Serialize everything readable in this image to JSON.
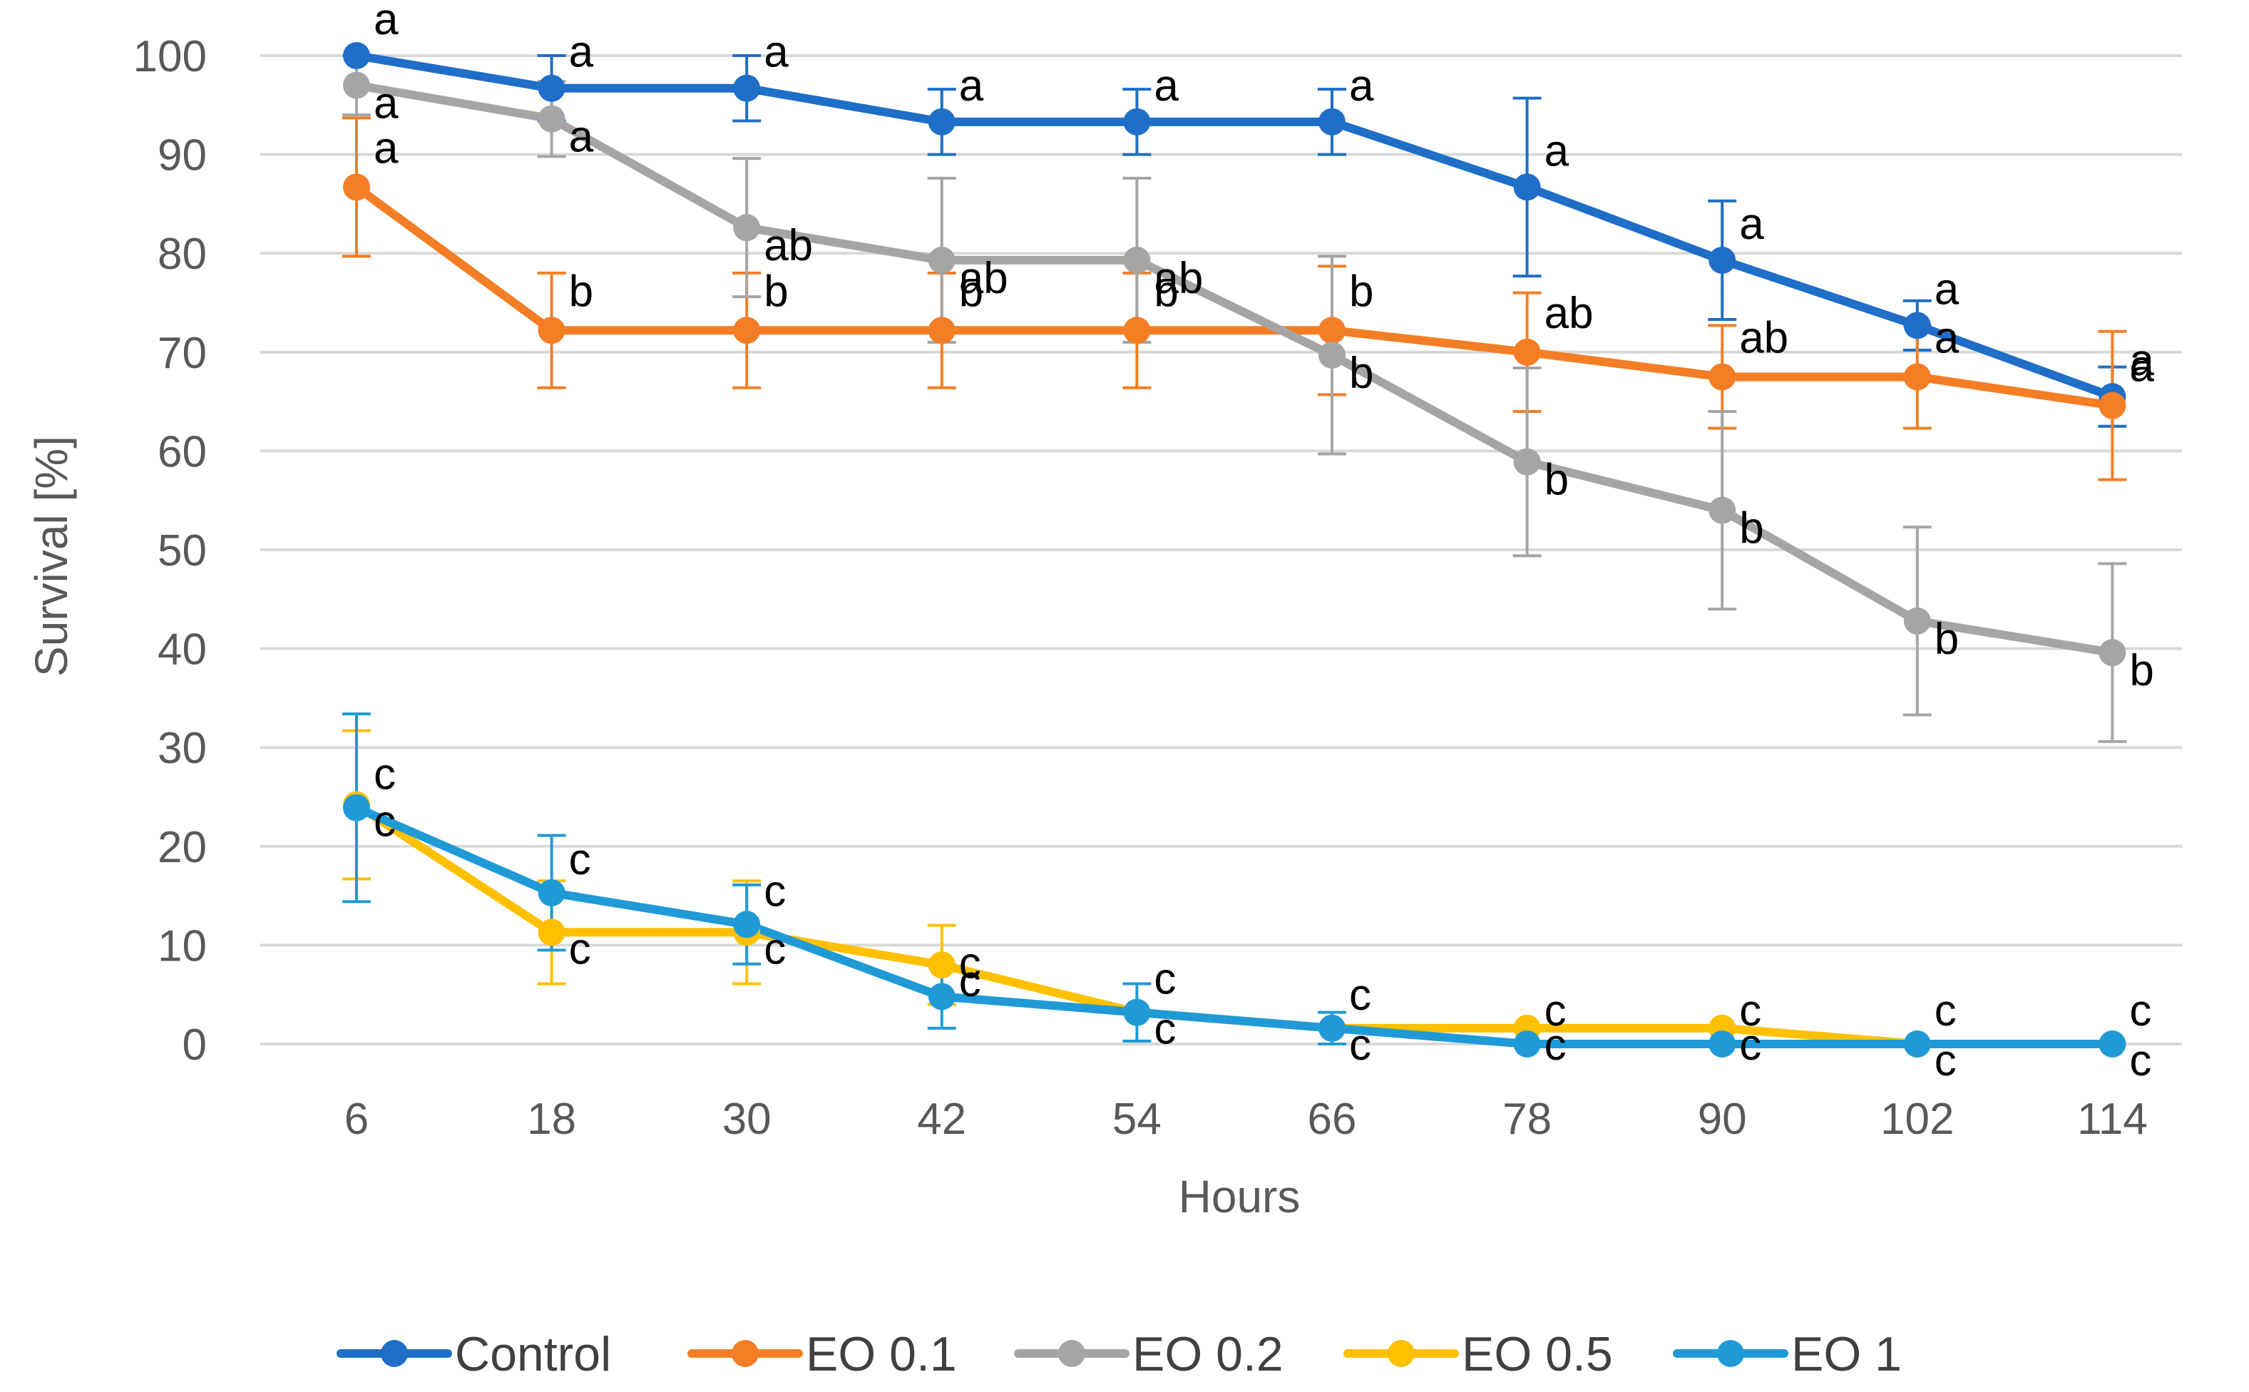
{
  "chart_data": {
    "type": "line",
    "title": "",
    "xlabel": "Hours",
    "ylabel": "Survival [%]",
    "ylim": [
      0,
      100
    ],
    "yticks": [
      "0",
      "10",
      "20",
      "30",
      "40",
      "50",
      "60",
      "70",
      "80",
      "90",
      "100"
    ],
    "categories": [
      "6",
      "18",
      "30",
      "42",
      "54",
      "66",
      "78",
      "90",
      "102",
      "114"
    ],
    "grid": "horizontal",
    "legend_position": "bottom",
    "series": [
      {
        "name": "Control",
        "color": "#1f6ec7",
        "values": [
          100,
          96.7,
          96.7,
          93.3,
          93.3,
          93.3,
          86.7,
          79.3,
          72.7,
          65.5
        ],
        "error": [
          0,
          3.3,
          3.3,
          3.3,
          3.3,
          3.3,
          9.0,
          6.0,
          2.5,
          3.0
        ],
        "letters": [
          "a",
          "a",
          "a",
          "a",
          "a",
          "a",
          "a",
          "a",
          "a",
          "a"
        ]
      },
      {
        "name": "EO 0.1",
        "color": "#f37e25",
        "values": [
          86.7,
          72.2,
          72.2,
          72.2,
          72.2,
          72.2,
          70.0,
          67.5,
          67.5,
          64.6
        ],
        "error": [
          7.0,
          5.8,
          5.8,
          5.8,
          5.8,
          6.5,
          6.0,
          5.2,
          5.2,
          7.5
        ],
        "letters": [
          "a",
          "b",
          "b",
          "b",
          "b",
          "b",
          "ab",
          "ab",
          "a",
          "a"
        ]
      },
      {
        "name": "EO 0.2",
        "color": "#a5a5a5",
        "values": [
          97.0,
          93.6,
          82.6,
          79.3,
          79.3,
          69.7,
          58.9,
          54.0,
          42.8,
          39.6
        ],
        "error": [
          3.0,
          3.8,
          7.0,
          8.3,
          8.3,
          10.0,
          9.5,
          10.0,
          9.5,
          9.0
        ],
        "letters": [
          "a",
          "a",
          "ab",
          "ab",
          "ab",
          "b",
          "b",
          "b",
          "b",
          "b"
        ]
      },
      {
        "name": "EO 0.5",
        "color": "#ffc000",
        "values": [
          24.2,
          11.3,
          11.3,
          8.0,
          3.2,
          1.6,
          1.6,
          1.6,
          0,
          0
        ],
        "error": [
          7.5,
          5.2,
          5.2,
          4.0,
          0,
          0,
          0,
          0,
          0,
          0
        ],
        "letters": [
          "c",
          "c",
          "c",
          "c",
          "c",
          "c",
          "c",
          "c",
          "c",
          "c"
        ]
      },
      {
        "name": "EO 1",
        "color": "#1f9ad6",
        "values": [
          23.9,
          15.3,
          12.1,
          4.8,
          3.2,
          1.6,
          0,
          0,
          0,
          0
        ],
        "error": [
          9.5,
          5.8,
          4.0,
          3.2,
          2.9,
          1.6,
          0,
          0,
          0,
          0
        ],
        "letters": [
          "c",
          "c",
          "c",
          "c",
          "c",
          "c",
          "c",
          "c",
          "c",
          "c"
        ]
      }
    ]
  }
}
